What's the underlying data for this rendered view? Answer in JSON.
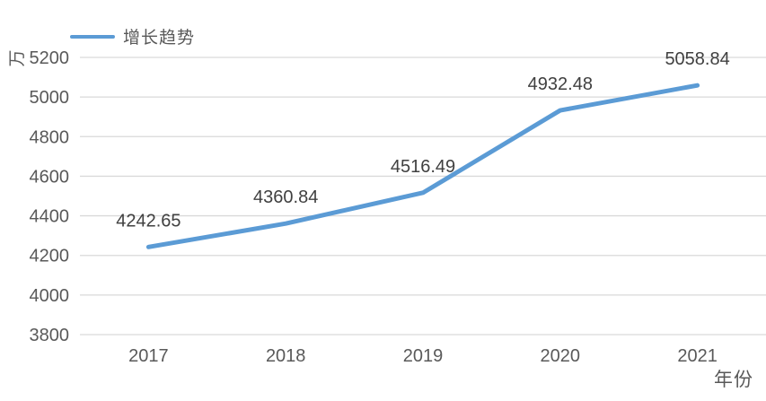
{
  "chart_data": {
    "type": "line",
    "title": "",
    "unit_label": "万",
    "xlabel": "年份",
    "legend": [
      {
        "name": "增长趋势",
        "color": "#5B9BD5"
      }
    ],
    "legend_position": "top-left",
    "categories": [
      "2017",
      "2018",
      "2019",
      "2020",
      "2021"
    ],
    "series": [
      {
        "name": "增长趋势",
        "values": [
          4242.65,
          4360.84,
          4516.49,
          4932.48,
          5058.84
        ]
      }
    ],
    "data_labels": [
      "4242.65",
      "4360.84",
      "4516.49",
      "4932.48",
      "5058.84"
    ],
    "ylim": [
      3800,
      5200
    ],
    "ytick_step": 200,
    "yticks": [
      3800,
      4000,
      4200,
      4400,
      4600,
      4800,
      5000,
      5200
    ],
    "grid": true,
    "colors": {
      "line": "#5B9BD5",
      "gridline": "#D9D9D9",
      "axis_text": "#595959",
      "data_label_text": "#404040",
      "background": "#FFFFFF"
    }
  }
}
